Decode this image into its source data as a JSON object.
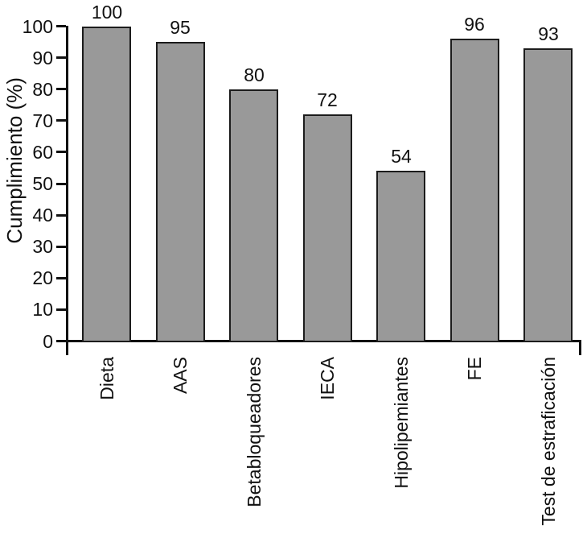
{
  "chart_data": {
    "type": "bar",
    "title": "",
    "xlabel": "",
    "ylabel": "Cumplimiento (%)",
    "categories": [
      "Dieta",
      "AAS",
      "Betabloqueadores",
      "IECA",
      "Hipolipemiantes",
      "FE",
      "Test de estraficación"
    ],
    "values": [
      100,
      95,
      80,
      72,
      54,
      96,
      93
    ],
    "value_labels": [
      "100",
      "95",
      "80",
      "72",
      "54",
      "96",
      "93"
    ],
    "ylim": [
      0,
      100
    ],
    "yticks": [
      0,
      10,
      20,
      30,
      40,
      50,
      60,
      70,
      80,
      90,
      100
    ],
    "grid": false,
    "legend": false,
    "bar_fill_color": "#999999",
    "bar_border_color": "#1c1c1c",
    "axis_color": "#111111",
    "background_color": "#ffffff"
  }
}
